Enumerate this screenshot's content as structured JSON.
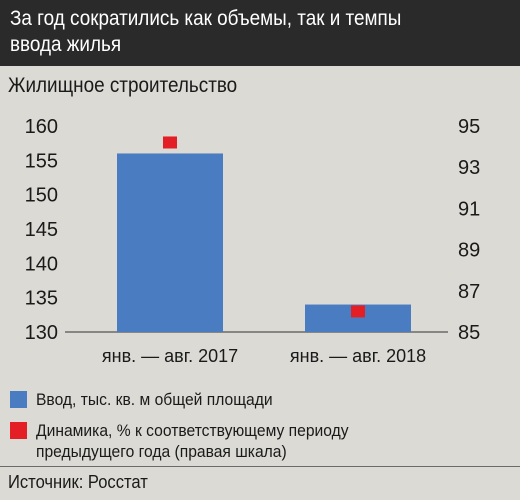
{
  "header": {
    "title": "За год сократились как объемы, так и темпы ввода жилья"
  },
  "subtitle": "Жилищное строительство",
  "chart_data": {
    "type": "bar",
    "categories": [
      "янв. — авг. 2017",
      "янв. — авг. 2018"
    ],
    "series": [
      {
        "name": "Ввод, тыс. кв. м общей площади",
        "type": "bar",
        "axis": "left",
        "color": "#4a7cc1",
        "values": [
          156,
          134
        ]
      },
      {
        "name": "Динамика, % к соответствующему периоду предыдущего года (правая шкала)",
        "type": "marker",
        "axis": "right",
        "color": "#e31e24",
        "values": [
          94.2,
          86
        ]
      }
    ],
    "left_axis": {
      "ylim": [
        130,
        160
      ],
      "ticks": [
        160,
        155,
        150,
        145,
        140,
        135,
        130
      ]
    },
    "right_axis": {
      "ylim": [
        85,
        95
      ],
      "ticks": [
        95,
        93,
        91,
        89,
        87,
        85
      ]
    },
    "grid": false,
    "legend_position": "bottom"
  },
  "legend": [
    {
      "color": "#4a7cc1",
      "label": "Ввод, тыс. кв. м общей площади"
    },
    {
      "color": "#e31e24",
      "label": "Динамика, % к соответствующему периоду предыдущего года (правая шкала)"
    }
  ],
  "source": "Источник: Росстат"
}
